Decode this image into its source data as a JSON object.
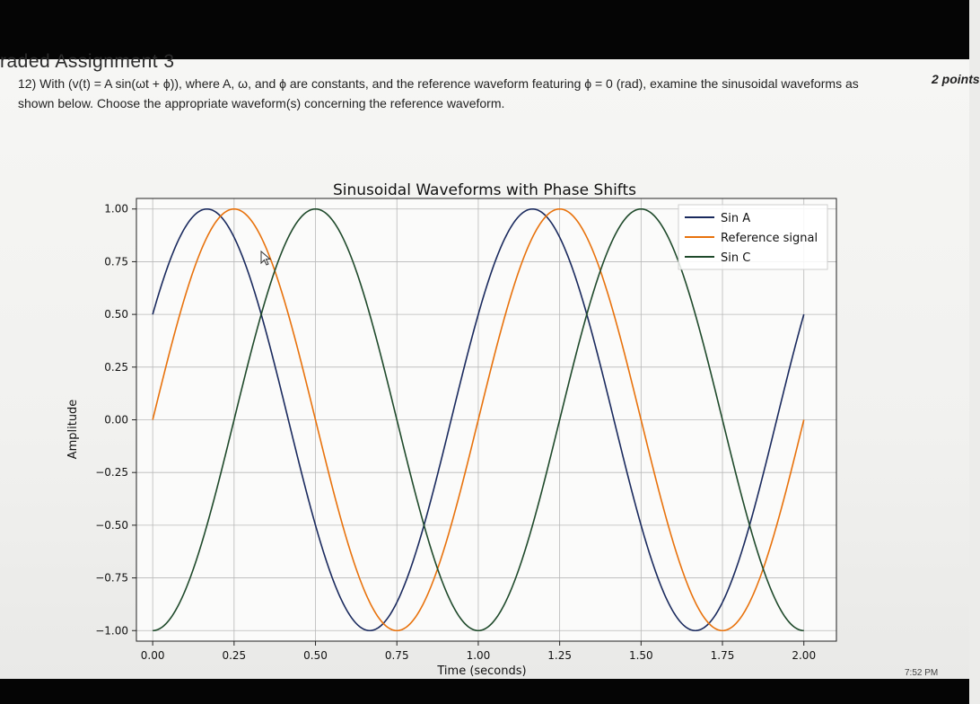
{
  "header": {
    "section_title": "raded Assignment 3",
    "question_line1": "12) With (v(t) = A sin(ωt + ϕ)), where A, ω, and ϕ are constants, and the reference waveform featuring ϕ = 0 (rad), examine the sinusoidal waveforms as",
    "question_line2": "shown below. Choose the appropriate waveform(s) concerning the reference waveform.",
    "points": "2 points"
  },
  "status_bar": {
    "clock": "7:52 PM"
  },
  "chart_data": {
    "type": "line",
    "title": "Sinusoidal Waveforms with Phase Shifts",
    "xlabel": "Time (seconds)",
    "ylabel": "Amplitude",
    "xlim": [
      -0.05,
      2.1
    ],
    "ylim": [
      -1.05,
      1.05
    ],
    "xticks": [
      0.0,
      0.25,
      0.5,
      0.75,
      1.0,
      1.25,
      1.5,
      1.75,
      2.0
    ],
    "xtick_labels": [
      "0.00",
      "0.25",
      "0.50",
      "0.75",
      "1.00",
      "1.25",
      "1.50",
      "1.75",
      "2.00"
    ],
    "yticks": [
      1.0,
      0.75,
      0.5,
      0.25,
      0.0,
      -0.25,
      -0.5,
      -0.75,
      -1.0
    ],
    "ytick_labels": [
      "1.00",
      "0.75",
      "0.50",
      "0.25",
      "0.00",
      "−0.25",
      "−0.50",
      "−0.75",
      "−1.00"
    ],
    "grid": true,
    "legend_position": "top-right",
    "series": [
      {
        "name": "Sin A",
        "color": "#1a2a5e",
        "amplitude": 1,
        "frequency_hz": 1,
        "phase_rad": 0.5236,
        "x_range": [
          0,
          2
        ]
      },
      {
        "name": "Reference signal",
        "color": "#e8720c",
        "amplitude": 1,
        "frequency_hz": 1,
        "phase_rad": 0,
        "x_range": [
          0,
          2
        ]
      },
      {
        "name": "Sin C",
        "color": "#1f4a2b",
        "amplitude": 1,
        "frequency_hz": 1,
        "phase_rad": -1.5708,
        "x_range": [
          0,
          2
        ]
      }
    ]
  }
}
